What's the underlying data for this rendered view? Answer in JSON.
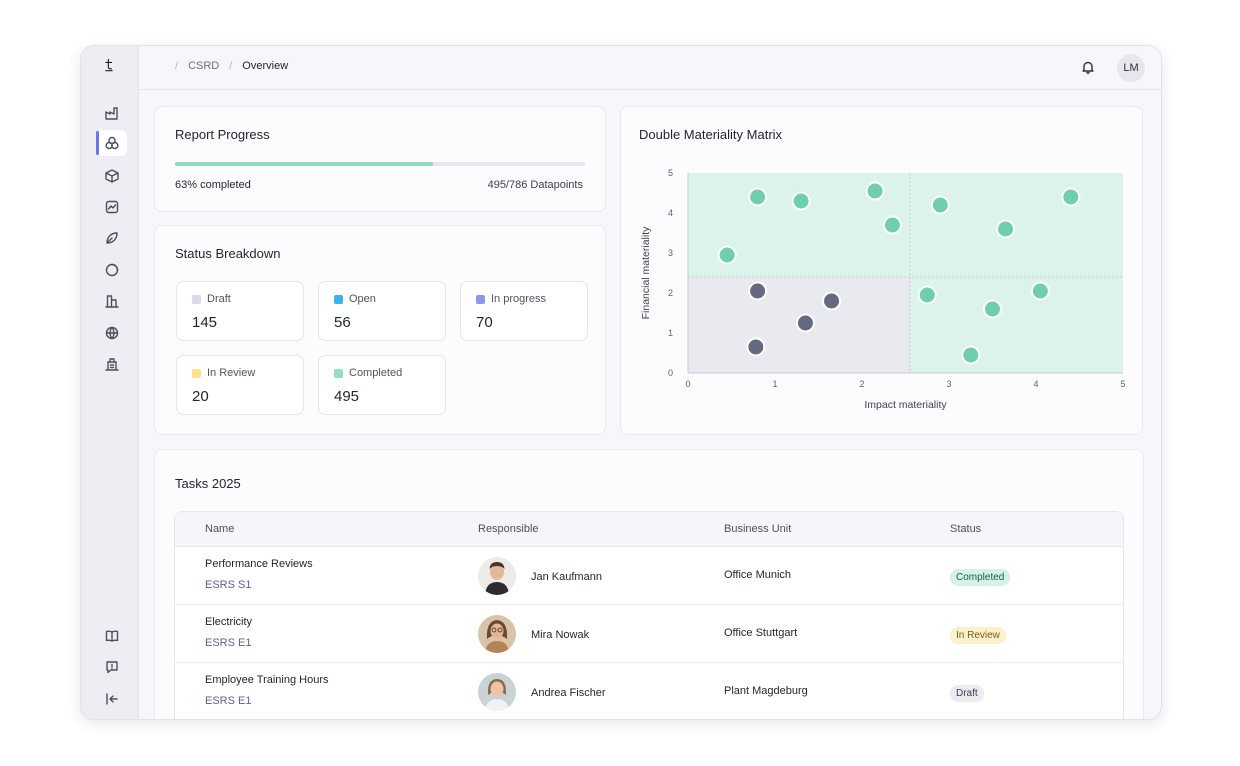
{
  "breadcrumb": {
    "section": "CSRD",
    "page": "Overview"
  },
  "user": {
    "initials": "LM"
  },
  "icons": {
    "logo": "tanso-logo",
    "nav": [
      "factory-icon",
      "circles-icon",
      "cube-icon",
      "chart-icon",
      "leaf-icon",
      "donut-icon",
      "buildings-icon",
      "globe-icon",
      "office-icon"
    ],
    "bottom": [
      "book-icon",
      "feedback-icon",
      "collapse-icon"
    ],
    "notifications": "bell-icon"
  },
  "report_progress": {
    "title": "Report Progress",
    "percent": 63,
    "completed_label": "63% completed",
    "datapoints_label": "495/786 Datapoints",
    "bar_color": "#8fdcbf"
  },
  "status_breakdown": {
    "title": "Status Breakdown",
    "items": [
      {
        "label": "Draft",
        "value": "145",
        "color": "#d9dae3"
      },
      {
        "label": "Open",
        "value": "56",
        "color": "#3bb2ec"
      },
      {
        "label": "In progress",
        "value": "70",
        "color": "#8e96ee"
      },
      {
        "label": "In Review",
        "value": "20",
        "color": "#fde28e"
      },
      {
        "label": "Completed",
        "value": "495",
        "color": "#93e0c5"
      }
    ]
  },
  "chart_data": {
    "type": "scatter",
    "title": "Double Materiality Matrix",
    "xlabel": "Impact materiality",
    "ylabel": "Financial materiality",
    "xlim": [
      0,
      5
    ],
    "ylim": [
      0,
      5
    ],
    "x_ticks": [
      "0",
      "1",
      "2",
      "3",
      "4",
      "5"
    ],
    "y_ticks": [
      "0",
      "1",
      "2",
      "3",
      "4",
      "5"
    ],
    "grid": false,
    "series": [
      {
        "color": "#6fcfac",
        "points": [
          [
            0.8,
            4.4
          ],
          [
            1.3,
            4.3
          ],
          [
            2.15,
            4.55
          ],
          [
            2.35,
            3.7
          ],
          [
            2.9,
            4.2
          ],
          [
            3.65,
            3.6
          ],
          [
            4.4,
            4.4
          ],
          [
            0.45,
            2.95
          ],
          [
            2.75,
            1.95
          ],
          [
            3.5,
            1.6
          ],
          [
            4.05,
            2.05
          ],
          [
            3.25,
            0.45
          ]
        ]
      },
      {
        "color": "#656a82",
        "points": [
          [
            0.8,
            2.05
          ],
          [
            1.65,
            1.8
          ],
          [
            1.35,
            1.25
          ],
          [
            0.78,
            0.65
          ]
        ]
      }
    ],
    "quadrant_colors": {
      "material": "#dcf3ea",
      "non_material": "#e9e9f0"
    }
  },
  "tasks": {
    "title": "Tasks 2025",
    "columns": [
      "Name",
      "Responsible",
      "Business Unit",
      "Status"
    ],
    "rows": [
      {
        "name": "Performance Reviews",
        "standard": "ESRS S1",
        "responsible": "Jan Kaufmann",
        "unit": "Office Munich",
        "status": "Completed",
        "status_bg": "#d5f2e6",
        "status_fg": "#1f5c45"
      },
      {
        "name": "Electricity",
        "standard": "ESRS E1",
        "responsible": "Mira Nowak",
        "unit": "Office Stuttgart",
        "status": "In Review",
        "status_bg": "#fdf0cc",
        "status_fg": "#7a5b10"
      },
      {
        "name": "Employee Training Hours",
        "standard": "ESRS E1",
        "responsible": "Andrea Fischer",
        "unit": "Plant Magdeburg",
        "status": "Draft",
        "status_bg": "#ebebf0",
        "status_fg": "#3a3d4a"
      }
    ]
  }
}
